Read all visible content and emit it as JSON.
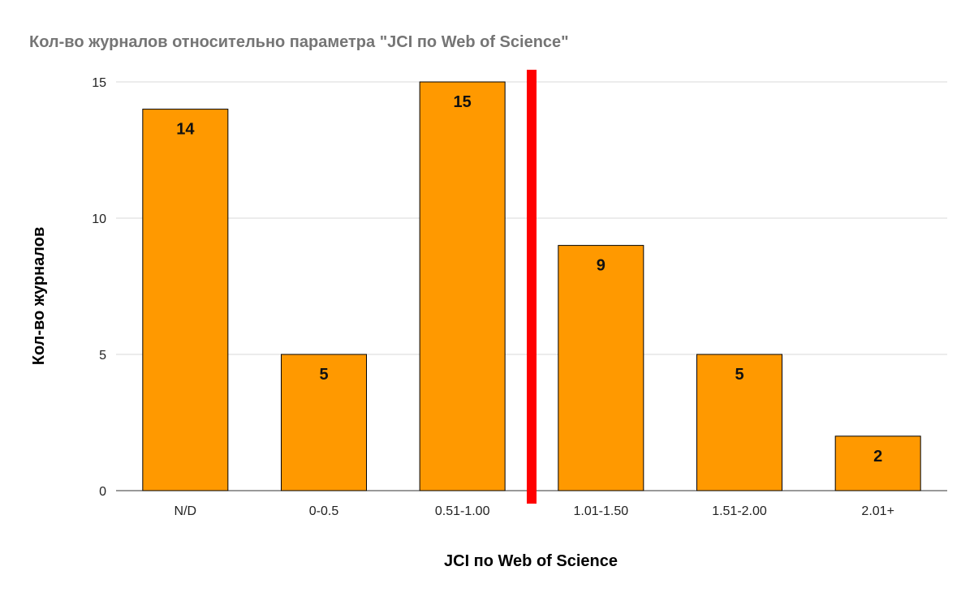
{
  "chart_data": {
    "type": "bar",
    "title": "Кол-во журналов относительно параметра \"JCI по Web of Science\"",
    "xlabel": "JCI по Web of Science",
    "ylabel": "Кол-во журналов",
    "categories": [
      "N/D",
      "0-0.5",
      "0.51-1.00",
      "1.01-1.50",
      "1.51-2.00",
      "2.01+"
    ],
    "values": [
      14,
      5,
      15,
      9,
      5,
      2
    ],
    "data_labels": [
      "14",
      "5",
      "15",
      "9",
      "5",
      "2"
    ],
    "ylim": [
      0,
      15
    ],
    "yticks": [
      0,
      5,
      10,
      15
    ],
    "ytick_labels": [
      "0",
      "5",
      "10",
      "15"
    ],
    "grid": true,
    "legend": "none",
    "colors": {
      "bar": "#ff9900",
      "bar_outline": "#000000",
      "marker_line": "#ff0000",
      "grid": "#d9d9d9",
      "title": "#757575"
    },
    "annotations": [
      {
        "type": "vertical-line",
        "position": "between 0.51-1.00 and 1.01-1.50",
        "color": "#ff0000"
      }
    ]
  }
}
